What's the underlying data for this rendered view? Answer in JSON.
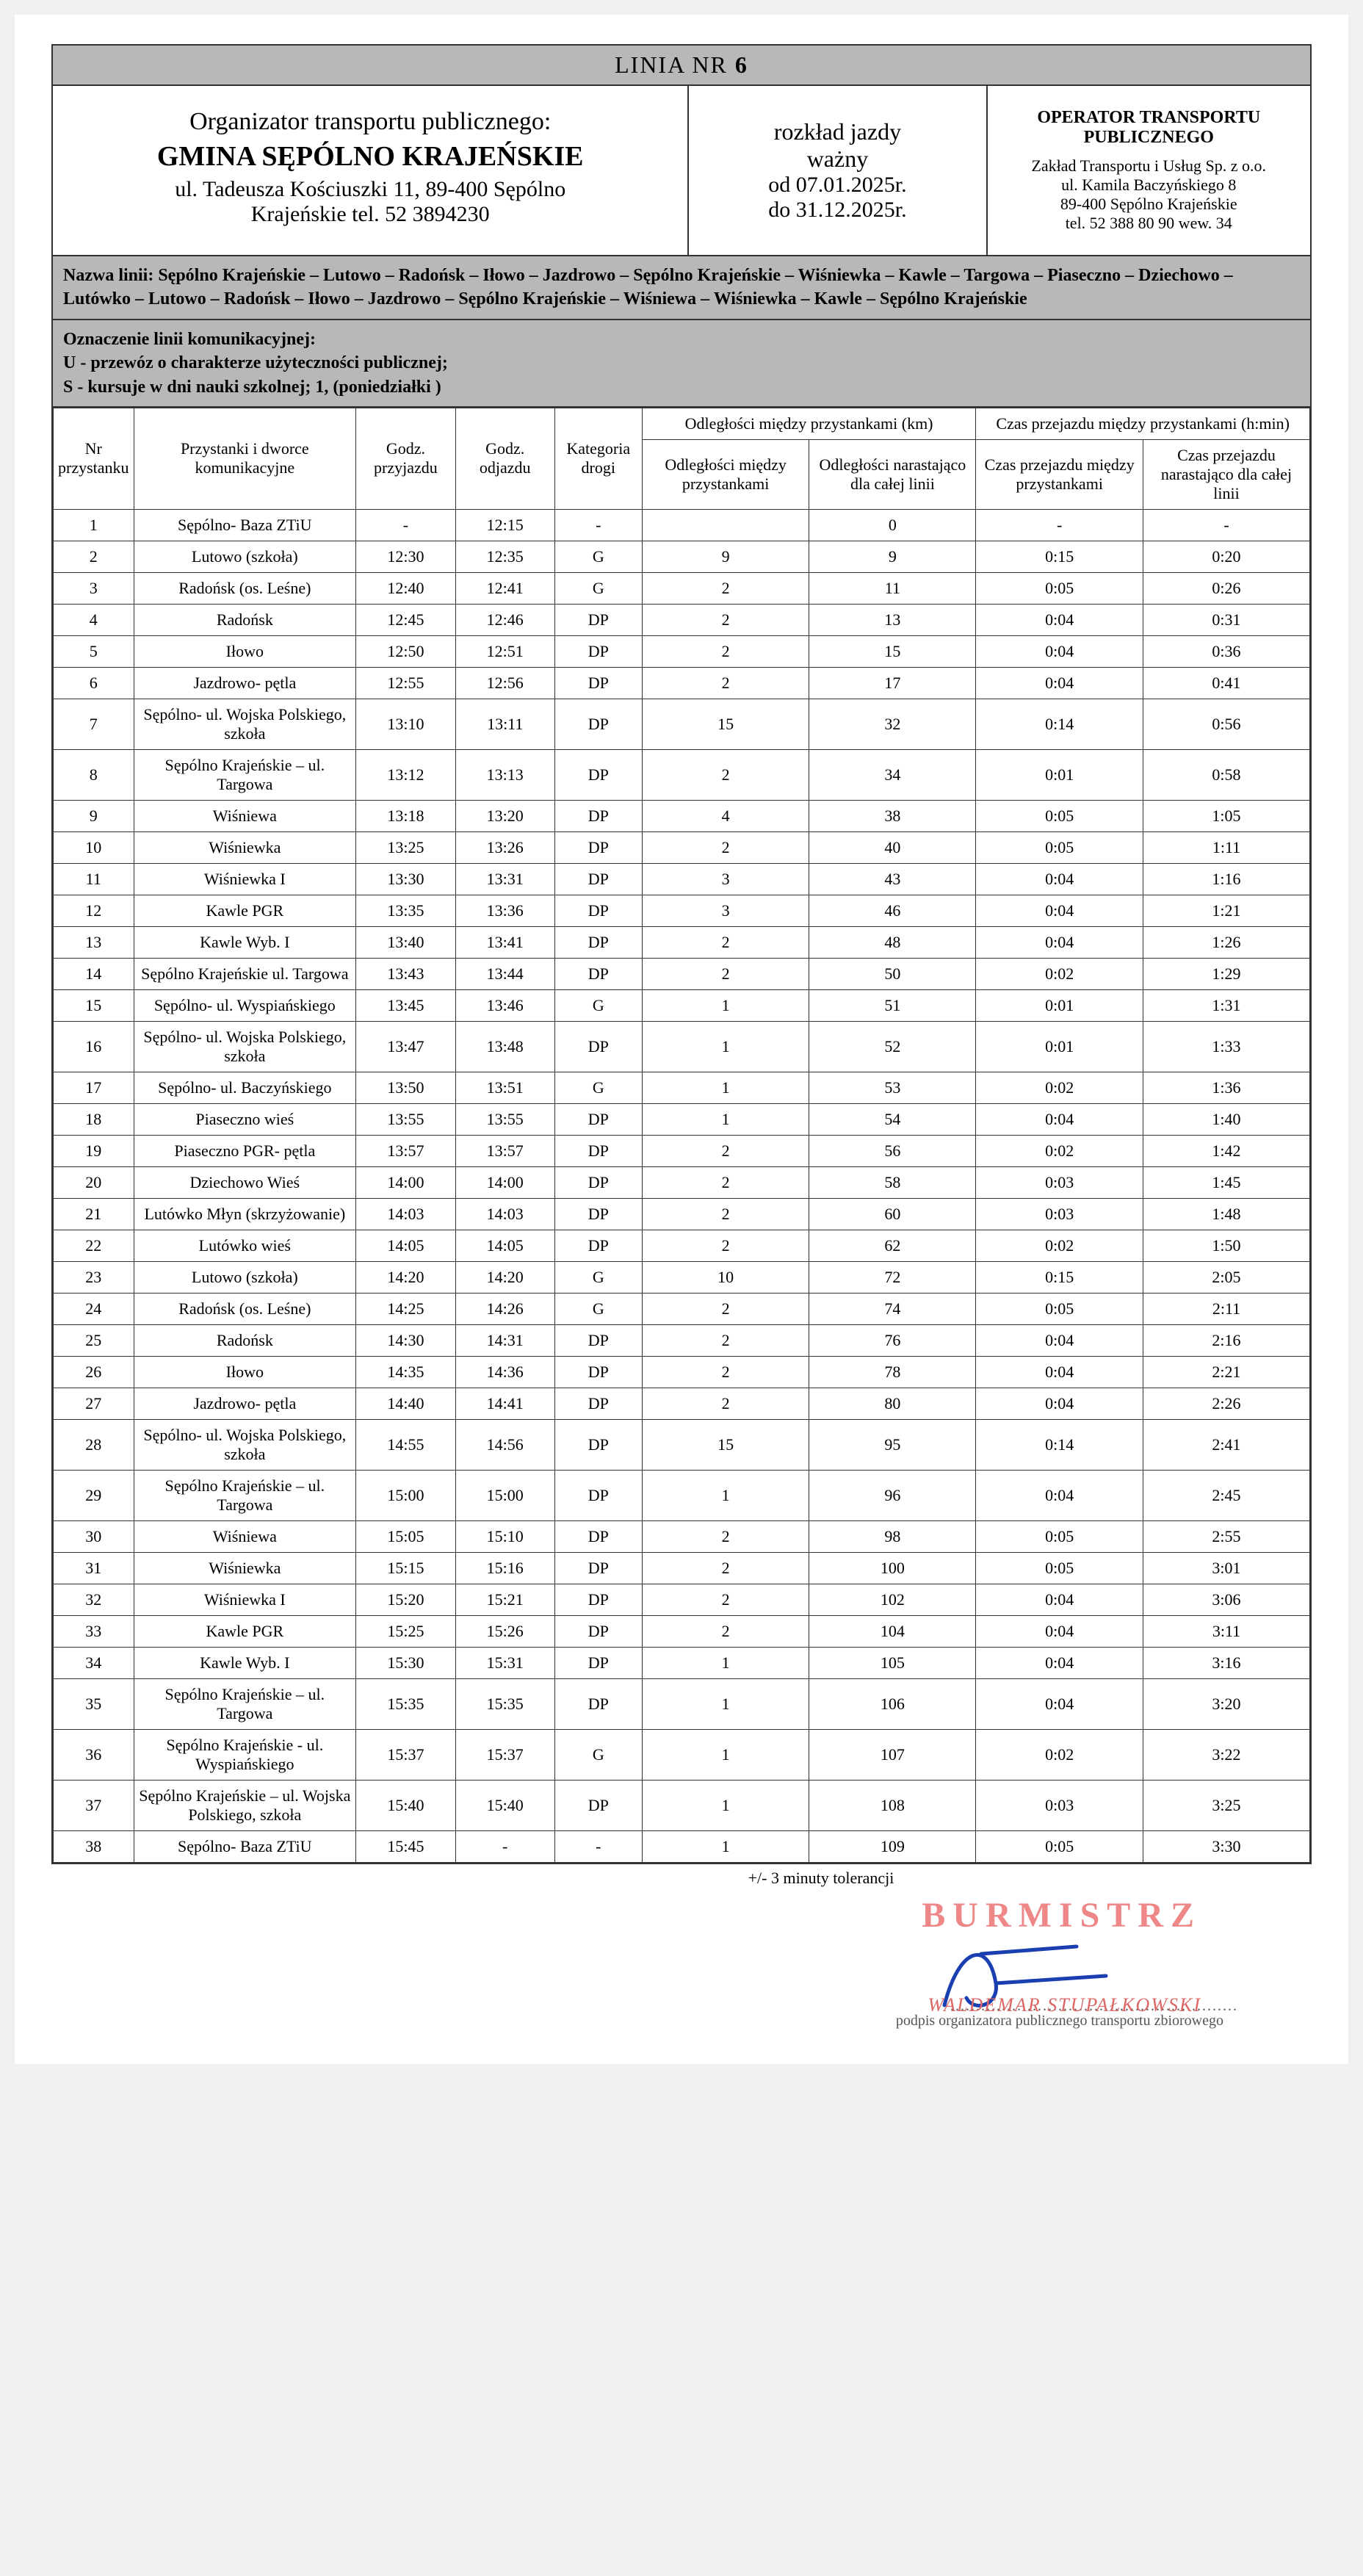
{
  "title_prefix": "LINIA NR",
  "title_num": "6",
  "organizer": {
    "label": "Organizator transportu publicznego:",
    "name": "GMINA SĘPÓLNO KRAJEŃSKIE",
    "addr1": "ul. Tadeusza Kościuszki 11, 89-400 Sępólno",
    "addr2": "Krajeńskie tel. 52 3894230"
  },
  "validity": {
    "l1": "rozkład jazdy",
    "l2": "ważny",
    "l3": "od 07.01.2025r.",
    "l4": "do 31.12.2025r."
  },
  "operator": {
    "title": "OPERATOR TRANSPORTU PUBLICZNEGO",
    "l1": "Zakład Transportu i Usług Sp. z o.o.",
    "l2": "ul. Kamila Baczyńskiego 8",
    "l3": "89-400 Sępólno Krajeńskie",
    "l4": "tel. 52 388 80 90  wew. 34"
  },
  "route_name": "Nazwa linii:  Sępólno Krajeńskie – Lutowo – Radońsk – Iłowo – Jazdrowo – Sępólno Krajeńskie – Wiśniewka – Kawle – Targowa – Piaseczno – Dziechowo – Lutówko – Lutowo – Radońsk – Iłowo – Jazdrowo – Sępólno Krajeńskie – Wiśniewa – Wiśniewka – Kawle – Sępólno Krajeńskie",
  "legend": {
    "t": "Oznaczenie linii komunikacyjnej:",
    "u": "U - przewóz o charakterze użyteczności publicznej;",
    "s": "S - kursuje w dni nauki szkolnej; 1, (poniedziałki )"
  },
  "headers": {
    "nr": "Nr przystanku",
    "stop": "Przystanki i dworce komunikacyjne",
    "arr": "Godz. przyjazdu",
    "dep": "Godz. odjazdu",
    "cat": "Kategoria drogi",
    "dist_group": "Odległości między przystankami (km)",
    "time_group": "Czas przejazdu między przystankami (h:min)",
    "dist_bt": "Odległości między przystankami",
    "dist_cum": "Odległości narastająco dla całej linii",
    "time_bt": "Czas przejazdu między przystankami",
    "time_cum": "Czas przejazdu narastająco dla całej linii"
  },
  "rows": [
    {
      "nr": "1",
      "stop": "Sępólno- Baza ZTiU",
      "arr": "-",
      "dep": "12:15",
      "cat": "-",
      "db": "",
      "dc": "0",
      "tb": "-",
      "tc": "-"
    },
    {
      "nr": "2",
      "stop": "Lutowo (szkoła)",
      "arr": "12:30",
      "dep": "12:35",
      "cat": "G",
      "db": "9",
      "dc": "9",
      "tb": "0:15",
      "tc": "0:20"
    },
    {
      "nr": "3",
      "stop": "Radońsk (os. Leśne)",
      "arr": "12:40",
      "dep": "12:41",
      "cat": "G",
      "db": "2",
      "dc": "11",
      "tb": "0:05",
      "tc": "0:26"
    },
    {
      "nr": "4",
      "stop": "Radońsk",
      "arr": "12:45",
      "dep": "12:46",
      "cat": "DP",
      "db": "2",
      "dc": "13",
      "tb": "0:04",
      "tc": "0:31"
    },
    {
      "nr": "5",
      "stop": "Iłowo",
      "arr": "12:50",
      "dep": "12:51",
      "cat": "DP",
      "db": "2",
      "dc": "15",
      "tb": "0:04",
      "tc": "0:36"
    },
    {
      "nr": "6",
      "stop": "Jazdrowo- pętla",
      "arr": "12:55",
      "dep": "12:56",
      "cat": "DP",
      "db": "2",
      "dc": "17",
      "tb": "0:04",
      "tc": "0:41"
    },
    {
      "nr": "7",
      "stop": "Sępólno- ul. Wojska Polskiego, szkoła",
      "arr": "13:10",
      "dep": "13:11",
      "cat": "DP",
      "db": "15",
      "dc": "32",
      "tb": "0:14",
      "tc": "0:56"
    },
    {
      "nr": "8",
      "stop": "Sępólno Krajeńskie – ul. Targowa",
      "arr": "13:12",
      "dep": "13:13",
      "cat": "DP",
      "db": "2",
      "dc": "34",
      "tb": "0:01",
      "tc": "0:58"
    },
    {
      "nr": "9",
      "stop": "Wiśniewa",
      "arr": "13:18",
      "dep": "13:20",
      "cat": "DP",
      "db": "4",
      "dc": "38",
      "tb": "0:05",
      "tc": "1:05"
    },
    {
      "nr": "10",
      "stop": "Wiśniewka",
      "arr": "13:25",
      "dep": "13:26",
      "cat": "DP",
      "db": "2",
      "dc": "40",
      "tb": "0:05",
      "tc": "1:11"
    },
    {
      "nr": "11",
      "stop": "Wiśniewka I",
      "arr": "13:30",
      "dep": "13:31",
      "cat": "DP",
      "db": "3",
      "dc": "43",
      "tb": "0:04",
      "tc": "1:16"
    },
    {
      "nr": "12",
      "stop": "Kawle PGR",
      "arr": "13:35",
      "dep": "13:36",
      "cat": "DP",
      "db": "3",
      "dc": "46",
      "tb": "0:04",
      "tc": "1:21"
    },
    {
      "nr": "13",
      "stop": "Kawle Wyb. I",
      "arr": "13:40",
      "dep": "13:41",
      "cat": "DP",
      "db": "2",
      "dc": "48",
      "tb": "0:04",
      "tc": "1:26"
    },
    {
      "nr": "14",
      "stop": "Sępólno Krajeńskie ul. Targowa",
      "arr": "13:43",
      "dep": "13:44",
      "cat": "DP",
      "db": "2",
      "dc": "50",
      "tb": "0:02",
      "tc": "1:29"
    },
    {
      "nr": "15",
      "stop": "Sępólno- ul. Wyspiańskiego",
      "arr": "13:45",
      "dep": "13:46",
      "cat": "G",
      "db": "1",
      "dc": "51",
      "tb": "0:01",
      "tc": "1:31"
    },
    {
      "nr": "16",
      "stop": "Sępólno- ul. Wojska Polskiego, szkoła",
      "arr": "13:47",
      "dep": "13:48",
      "cat": "DP",
      "db": "1",
      "dc": "52",
      "tb": "0:01",
      "tc": "1:33"
    },
    {
      "nr": "17",
      "stop": "Sępólno- ul. Baczyńskiego",
      "arr": "13:50",
      "dep": "13:51",
      "cat": "G",
      "db": "1",
      "dc": "53",
      "tb": "0:02",
      "tc": "1:36"
    },
    {
      "nr": "18",
      "stop": "Piaseczno wieś",
      "arr": "13:55",
      "dep": "13:55",
      "cat": "DP",
      "db": "1",
      "dc": "54",
      "tb": "0:04",
      "tc": "1:40"
    },
    {
      "nr": "19",
      "stop": "Piaseczno PGR- pętla",
      "arr": "13:57",
      "dep": "13:57",
      "cat": "DP",
      "db": "2",
      "dc": "56",
      "tb": "0:02",
      "tc": "1:42"
    },
    {
      "nr": "20",
      "stop": "Dziechowo Wieś",
      "arr": "14:00",
      "dep": "14:00",
      "cat": "DP",
      "db": "2",
      "dc": "58",
      "tb": "0:03",
      "tc": "1:45"
    },
    {
      "nr": "21",
      "stop": "Lutówko Młyn (skrzyżowanie)",
      "arr": "14:03",
      "dep": "14:03",
      "cat": "DP",
      "db": "2",
      "dc": "60",
      "tb": "0:03",
      "tc": "1:48"
    },
    {
      "nr": "22",
      "stop": "Lutówko wieś",
      "arr": "14:05",
      "dep": "14:05",
      "cat": "DP",
      "db": "2",
      "dc": "62",
      "tb": "0:02",
      "tc": "1:50"
    },
    {
      "nr": "23",
      "stop": "Lutowo (szkoła)",
      "arr": "14:20",
      "dep": "14:20",
      "cat": "G",
      "db": "10",
      "dc": "72",
      "tb": "0:15",
      "tc": "2:05"
    },
    {
      "nr": "24",
      "stop": "Radońsk (os. Leśne)",
      "arr": "14:25",
      "dep": "14:26",
      "cat": "G",
      "db": "2",
      "dc": "74",
      "tb": "0:05",
      "tc": "2:11"
    },
    {
      "nr": "25",
      "stop": "Radońsk",
      "arr": "14:30",
      "dep": "14:31",
      "cat": "DP",
      "db": "2",
      "dc": "76",
      "tb": "0:04",
      "tc": "2:16"
    },
    {
      "nr": "26",
      "stop": "Iłowo",
      "arr": "14:35",
      "dep": "14:36",
      "cat": "DP",
      "db": "2",
      "dc": "78",
      "tb": "0:04",
      "tc": "2:21"
    },
    {
      "nr": "27",
      "stop": "Jazdrowo- pętla",
      "arr": "14:40",
      "dep": "14:41",
      "cat": "DP",
      "db": "2",
      "dc": "80",
      "tb": "0:04",
      "tc": "2:26"
    },
    {
      "nr": "28",
      "stop": "Sępólno- ul. Wojska Polskiego, szkoła",
      "arr": "14:55",
      "dep": "14:56",
      "cat": "DP",
      "db": "15",
      "dc": "95",
      "tb": "0:14",
      "tc": "2:41"
    },
    {
      "nr": "29",
      "stop": "Sępólno Krajeńskie – ul. Targowa",
      "arr": "15:00",
      "dep": "15:00",
      "cat": "DP",
      "db": "1",
      "dc": "96",
      "tb": "0:04",
      "tc": "2:45"
    },
    {
      "nr": "30",
      "stop": "Wiśniewa",
      "arr": "15:05",
      "dep": "15:10",
      "cat": "DP",
      "db": "2",
      "dc": "98",
      "tb": "0:05",
      "tc": "2:55"
    },
    {
      "nr": "31",
      "stop": "Wiśniewka",
      "arr": "15:15",
      "dep": "15:16",
      "cat": "DP",
      "db": "2",
      "dc": "100",
      "tb": "0:05",
      "tc": "3:01"
    },
    {
      "nr": "32",
      "stop": "Wiśniewka I",
      "arr": "15:20",
      "dep": "15:21",
      "cat": "DP",
      "db": "2",
      "dc": "102",
      "tb": "0:04",
      "tc": "3:06"
    },
    {
      "nr": "33",
      "stop": "Kawle PGR",
      "arr": "15:25",
      "dep": "15:26",
      "cat": "DP",
      "db": "2",
      "dc": "104",
      "tb": "0:04",
      "tc": "3:11"
    },
    {
      "nr": "34",
      "stop": "Kawle Wyb. I",
      "arr": "15:30",
      "dep": "15:31",
      "cat": "DP",
      "db": "1",
      "dc": "105",
      "tb": "0:04",
      "tc": "3:16"
    },
    {
      "nr": "35",
      "stop": "Sępólno Krajeńskie – ul. Targowa",
      "arr": "15:35",
      "dep": "15:35",
      "cat": "DP",
      "db": "1",
      "dc": "106",
      "tb": "0:04",
      "tc": "3:20"
    },
    {
      "nr": "36",
      "stop": "Sępólno Krajeńskie - ul. Wyspiańskiego",
      "arr": "15:37",
      "dep": "15:37",
      "cat": "G",
      "db": "1",
      "dc": "107",
      "tb": "0:02",
      "tc": "3:22"
    },
    {
      "nr": "37",
      "stop": "Sępólno Krajeńskie – ul. Wojska Polskiego, szkoła",
      "arr": "15:40",
      "dep": "15:40",
      "cat": "DP",
      "db": "1",
      "dc": "108",
      "tb": "0:03",
      "tc": "3:25"
    },
    {
      "nr": "38",
      "stop": "Sępólno- Baza ZTiU",
      "arr": "15:45",
      "dep": "-",
      "cat": "-",
      "db": "1",
      "dc": "109",
      "tb": "0:05",
      "tc": "3:30"
    }
  ],
  "tolerance": "+/- 3 minuty tolerancji",
  "stamp": "BURMISTRZ",
  "sig_name": "WALDEMAR STUPAŁKOWSKI",
  "podpis": "podpis organizatora publicznego transportu zbiorowego",
  "colors": {
    "gray": "#b8b8b8",
    "border": "#333333",
    "stamp": "#ee8888",
    "sig_blue": "#1a3fb0"
  }
}
